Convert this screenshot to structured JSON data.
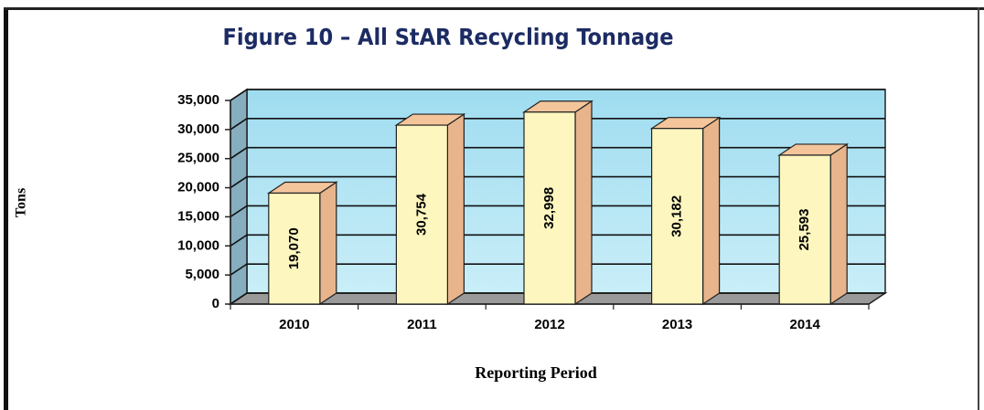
{
  "chart_data": {
    "type": "bar3d",
    "title": "Figure 10 – All StAR Recycling Tonnage",
    "y_label": "Tons",
    "x_label": "Reporting Period",
    "categories": [
      "2010",
      "2011",
      "2012",
      "2013",
      "2014"
    ],
    "values": [
      19070,
      30754,
      32998,
      30182,
      25593
    ],
    "value_labels": [
      "19,070",
      "30,754",
      "32,998",
      "30,182",
      "25,593"
    ],
    "color": "#fdf6bf",
    "ylim": [
      0,
      35000
    ],
    "yticks": [
      0,
      {
        "value": 5000,
        "label": "5,000"
      },
      {
        "value": 10000,
        "label": "10,000"
      },
      {
        "value": 15000,
        "label": "15,000"
      },
      {
        "value": 20000,
        "label": "20,000"
      },
      {
        "value": 25000,
        "label": "25,000"
      },
      {
        "value": 30000,
        "label": "30,000"
      },
      {
        "value": 35000,
        "label": "35,000"
      }
    ],
    "grid": true
  }
}
